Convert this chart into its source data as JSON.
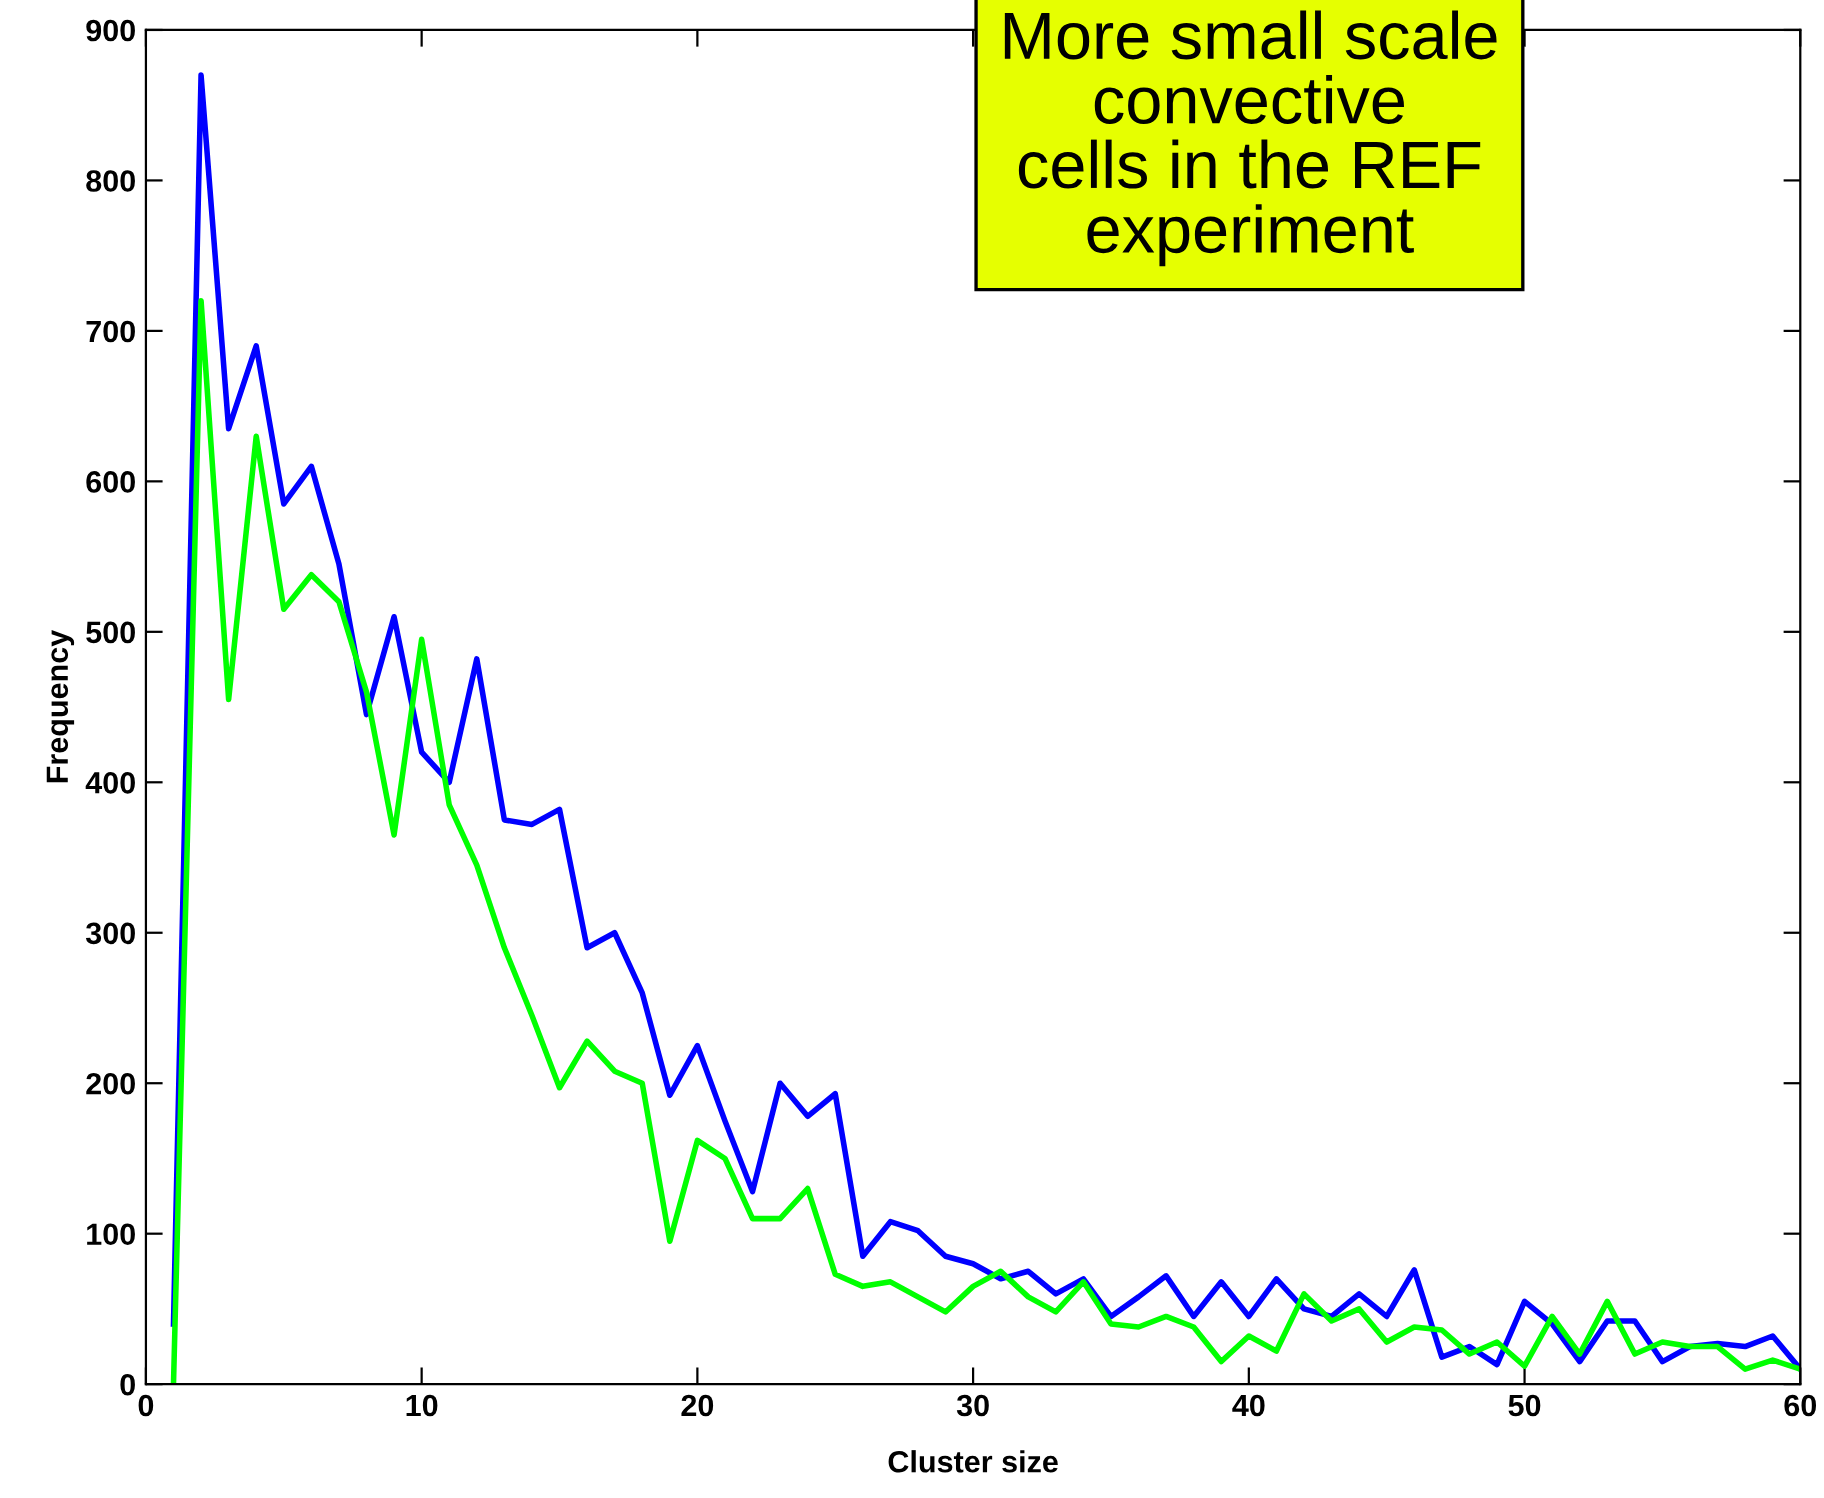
{
  "chart_data": {
    "type": "line",
    "xlabel": "Cluster size",
    "ylabel": "Frequency",
    "x": [
      1,
      2,
      3,
      4,
      5,
      6,
      7,
      8,
      9,
      10,
      11,
      12,
      13,
      14,
      15,
      16,
      17,
      18,
      19,
      20,
      21,
      22,
      23,
      24,
      25,
      26,
      27,
      28,
      29,
      30,
      31,
      32,
      33,
      34,
      35,
      36,
      37,
      38,
      39,
      40,
      41,
      42,
      43,
      44,
      45,
      46,
      47,
      48,
      49,
      50,
      51,
      52,
      53,
      54,
      55,
      56,
      57,
      58,
      59,
      60
    ],
    "series": [
      {
        "color": "#0000ff",
        "values": [
          40,
          870,
          635,
          690,
          585,
          610,
          545,
          445,
          510,
          420,
          400,
          482,
          375,
          372,
          382,
          290,
          300,
          260,
          192,
          225,
          175,
          128,
          200,
          178,
          193,
          85,
          108,
          102,
          85,
          80,
          70,
          75,
          60,
          70,
          45,
          58,
          72,
          45,
          68,
          45,
          70,
          50,
          45,
          60,
          45,
          76,
          18,
          25,
          13,
          55,
          40,
          15,
          42,
          42,
          15,
          25,
          27,
          25,
          32,
          10
        ]
      },
      {
        "color": "#00ff00",
        "values": [
          0,
          720,
          455,
          630,
          515,
          538,
          520,
          460,
          365,
          495,
          385,
          345,
          290,
          245,
          197,
          228,
          208,
          200,
          95,
          162,
          150,
          110,
          110,
          130,
          73,
          65,
          68,
          58,
          48,
          65,
          75,
          58,
          48,
          68,
          40,
          38,
          45,
          38,
          15,
          32,
          22,
          60,
          42,
          50,
          28,
          38,
          36,
          20,
          28,
          12,
          45,
          20,
          55,
          20,
          28,
          25,
          25,
          10,
          16,
          10
        ]
      }
    ],
    "xlim": [
      0,
      60
    ],
    "xticks": [
      0,
      10,
      20,
      30,
      40,
      50,
      60
    ],
    "ylim": [
      0,
      900
    ],
    "yticks": [
      0,
      100,
      200,
      300,
      400,
      500,
      600,
      700,
      800,
      900
    ],
    "grid": false,
    "legend": false,
    "marker": "none",
    "line_style": "solid",
    "annotations": [
      "More small scale\nconvective\ncells in the REF\nexperiment"
    ]
  }
}
